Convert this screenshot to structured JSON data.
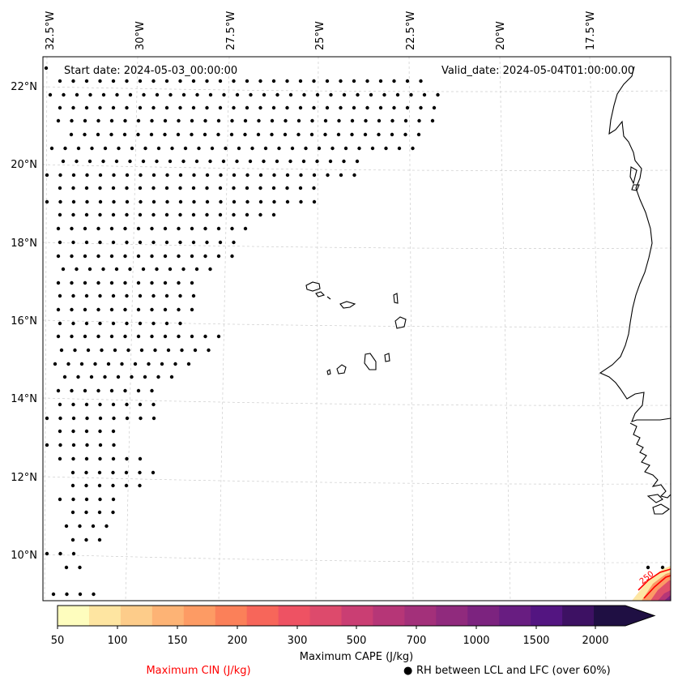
{
  "map": {
    "start_date": "Start date: 2024-05-03_00:00:00",
    "valid_date": "Valid_date: 2024-05-04T01:00:00.00",
    "lon_labels": [
      "32.5°W",
      "30°W",
      "27.5°W",
      "25°W",
      "22.5°W",
      "20°W",
      "17.5°W"
    ],
    "lat_labels": [
      "22°N",
      "20°N",
      "18°N",
      "16°N",
      "14°N",
      "12°N",
      "10°N"
    ],
    "contour_label": "250"
  },
  "colorbar": {
    "title": "Maximum CAPE (J/kg)",
    "tick_labels": [
      "50",
      "100",
      "150",
      "200",
      "300",
      "500",
      "700",
      "1000",
      "1500",
      "2000"
    ],
    "colors": [
      "#fefdbe",
      "#fee5a1",
      "#fdcc8a",
      "#fdb375",
      "#fd9b64",
      "#fb8059",
      "#f7665a",
      "#ee5263",
      "#dd4a6c",
      "#ca3e73",
      "#b63677",
      "#a3307a",
      "#902a7d",
      "#7c237f",
      "#681d81",
      "#531581",
      "#3d1163",
      "#1f0f43"
    ],
    "extend_color": "#1f0f43"
  },
  "legend": {
    "cin_label": "Maximum CIN (J/kg)",
    "cin_color": "#ff0000",
    "rh_marker": "●",
    "rh_label": "RH between LCL and LFC (over 60%)"
  }
}
